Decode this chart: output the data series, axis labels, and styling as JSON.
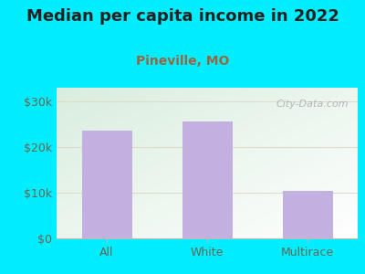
{
  "title": "Median per capita income in 2022",
  "subtitle": "Pineville, MO",
  "categories": [
    "All",
    "White",
    "Multirace"
  ],
  "values": [
    23500,
    25500,
    10500
  ],
  "bar_color": "#c4b0e0",
  "title_fontsize": 13,
  "subtitle_fontsize": 10,
  "subtitle_color": "#996644",
  "yticks": [
    0,
    10000,
    20000,
    30000
  ],
  "ytick_labels": [
    "$0",
    "$10k",
    "$20k",
    "$30k"
  ],
  "ylim": [
    0,
    33000
  ],
  "background_outer": "#00eeff",
  "watermark": "City-Data.com",
  "tick_label_color": "#666655",
  "axis_color": "#bbbbbb",
  "grid_color": "#ddddcc",
  "bg_left": "#d8eedd",
  "bg_right": "#f5f5f5"
}
